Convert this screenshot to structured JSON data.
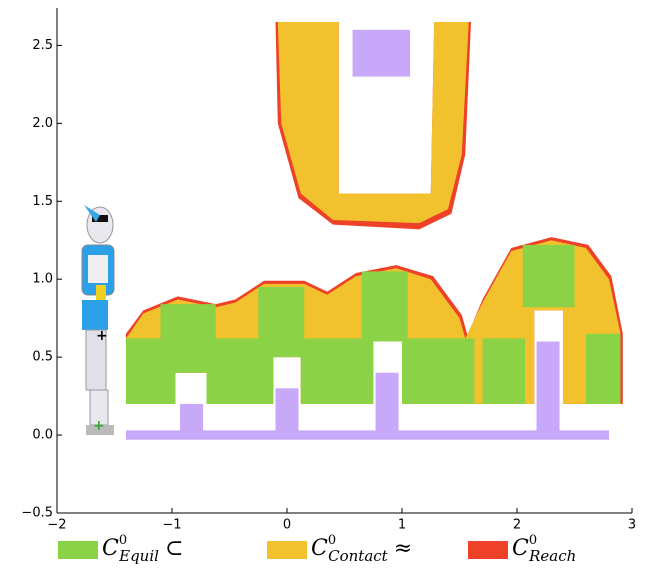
{
  "chart_data": {
    "type": "region",
    "xlim": [
      -2,
      3
    ],
    "ylim": [
      -0.5,
      2.74
    ],
    "xticks": [
      {
        "value": -2,
        "label": "−2"
      },
      {
        "value": -1,
        "label": "−1"
      },
      0,
      1,
      2,
      3
    ],
    "yticks": [
      {
        "value": -0.5,
        "label": "−0.5"
      },
      {
        "value": 0,
        "label": "0.0"
      },
      {
        "value": 0.5,
        "label": "0.5"
      },
      {
        "value": 1,
        "label": "1.0"
      },
      {
        "value": 1.5,
        "label": "1.5"
      },
      {
        "value": 2,
        "label": "2.0"
      },
      {
        "value": 2.5,
        "label": "2.5"
      }
    ],
    "series": [
      {
        "symbol": "C",
        "sup": "0",
        "sub": "Equil",
        "op": "⊂",
        "color": "#8cd246",
        "layer": 2,
        "polygons": [
          [
            [
              -1.4,
              0.2
            ],
            [
              -1.4,
              0.62
            ],
            [
              -1.1,
              0.62
            ],
            [
              -1.1,
              0.84
            ],
            [
              -0.62,
              0.84
            ],
            [
              -0.62,
              0.62
            ],
            [
              -0.25,
              0.62
            ],
            [
              -0.25,
              0.95
            ],
            [
              0.15,
              0.95
            ],
            [
              0.15,
              0.62
            ],
            [
              0.65,
              0.62
            ],
            [
              0.65,
              1.05
            ],
            [
              1.05,
              1.05
            ],
            [
              1.05,
              0.62
            ],
            [
              1.63,
              0.62
            ],
            [
              1.63,
              0.2
            ]
          ],
          [
            [
              -0.97,
              0.2
            ],
            [
              -0.97,
              0.4
            ],
            [
              -0.7,
              0.4
            ],
            [
              -0.7,
              0.2
            ]
          ],
          [
            [
              -0.12,
              0.2
            ],
            [
              -0.12,
              0.5
            ],
            [
              0.12,
              0.5
            ],
            [
              0.12,
              0.2
            ]
          ],
          [
            [
              0.75,
              0.2
            ],
            [
              0.75,
              0.6
            ],
            [
              1.0,
              0.6
            ],
            [
              1.0,
              0.2
            ]
          ],
          [
            [
              1.7,
              0.2
            ],
            [
              1.7,
              0.62
            ],
            [
              2.07,
              0.62
            ],
            [
              2.07,
              0.2
            ]
          ],
          [
            [
              2.05,
              0.82
            ],
            [
              2.05,
              1.22
            ],
            [
              2.5,
              1.22
            ],
            [
              2.5,
              0.82
            ]
          ],
          [
            [
              2.6,
              0.2
            ],
            [
              2.6,
              0.65
            ],
            [
              2.9,
              0.65
            ],
            [
              2.9,
              0.2
            ]
          ]
        ]
      },
      {
        "symbol": "C",
        "sup": "0",
        "sub": "Contact",
        "op": "≈",
        "color": "#f2c12e",
        "layer": 1,
        "polygons": [
          [
            [
              -0.08,
              2.65
            ],
            [
              0.45,
              2.65
            ],
            [
              0.45,
              1.55
            ],
            [
              1.25,
              1.55
            ],
            [
              1.28,
              2.65
            ],
            [
              1.58,
              2.65
            ],
            [
              1.52,
              1.8
            ],
            [
              1.4,
              1.45
            ],
            [
              1.15,
              1.36
            ],
            [
              0.4,
              1.38
            ],
            [
              0.12,
              1.55
            ],
            [
              -0.05,
              2.0
            ]
          ],
          [
            [
              -1.4,
              0.2
            ],
            [
              -1.4,
              0.62
            ],
            [
              -1.25,
              0.78
            ],
            [
              -0.95,
              0.87
            ],
            [
              -0.62,
              0.82
            ],
            [
              -0.45,
              0.85
            ],
            [
              -0.2,
              0.97
            ],
            [
              0.15,
              0.97
            ],
            [
              0.35,
              0.9
            ],
            [
              0.6,
              1.02
            ],
            [
              0.95,
              1.07
            ],
            [
              1.25,
              1.0
            ],
            [
              1.5,
              0.75
            ],
            [
              1.55,
              0.62
            ],
            [
              1.7,
              0.85
            ],
            [
              1.95,
              1.18
            ],
            [
              2.3,
              1.25
            ],
            [
              2.6,
              1.2
            ],
            [
              2.8,
              1.0
            ],
            [
              2.9,
              0.65
            ],
            [
              2.9,
              0.2
            ]
          ],
          [
            [
              -0.97,
              0.2
            ],
            [
              -0.97,
              0.4
            ],
            [
              -0.7,
              0.4
            ],
            [
              -0.7,
              0.2
            ]
          ],
          [
            [
              -0.12,
              0.2
            ],
            [
              -0.12,
              0.5
            ],
            [
              0.12,
              0.5
            ],
            [
              0.12,
              0.2
            ]
          ],
          [
            [
              0.75,
              0.2
            ],
            [
              0.75,
              0.6
            ],
            [
              1.0,
              0.6
            ],
            [
              1.0,
              0.2
            ]
          ],
          [
            [
              2.15,
              0.2
            ],
            [
              2.15,
              0.8
            ],
            [
              2.4,
              0.8
            ],
            [
              2.4,
              0.2
            ]
          ]
        ]
      },
      {
        "symbol": "C",
        "sup": "0",
        "sub": "Reach",
        "color": "#ee4128",
        "layer": 0,
        "polygons": [
          [
            [
              -0.1,
              2.65
            ],
            [
              0.45,
              2.65
            ],
            [
              0.45,
              1.55
            ],
            [
              1.25,
              1.55
            ],
            [
              1.28,
              2.65
            ],
            [
              1.6,
              2.65
            ],
            [
              1.55,
              1.8
            ],
            [
              1.43,
              1.42
            ],
            [
              1.15,
              1.32
            ],
            [
              0.4,
              1.35
            ],
            [
              0.1,
              1.52
            ],
            [
              -0.08,
              2.0
            ]
          ],
          [
            [
              -1.4,
              0.2
            ],
            [
              -1.4,
              0.65
            ],
            [
              -1.25,
              0.8
            ],
            [
              -0.95,
              0.89
            ],
            [
              -0.62,
              0.84
            ],
            [
              -0.45,
              0.87
            ],
            [
              -0.2,
              0.99
            ],
            [
              0.15,
              0.99
            ],
            [
              0.35,
              0.92
            ],
            [
              0.6,
              1.04
            ],
            [
              0.95,
              1.09
            ],
            [
              1.27,
              1.02
            ],
            [
              1.52,
              0.77
            ],
            [
              1.57,
              0.64
            ],
            [
              1.7,
              0.87
            ],
            [
              1.95,
              1.2
            ],
            [
              2.3,
              1.27
            ],
            [
              2.62,
              1.22
            ],
            [
              2.82,
              1.02
            ],
            [
              2.92,
              0.65
            ],
            [
              2.92,
              0.2
            ]
          ],
          [
            [
              -0.97,
              0.2
            ],
            [
              -0.97,
              0.4
            ],
            [
              -0.7,
              0.4
            ],
            [
              -0.7,
              0.2
            ]
          ],
          [
            [
              -0.12,
              0.2
            ],
            [
              -0.12,
              0.5
            ],
            [
              0.12,
              0.5
            ],
            [
              0.12,
              0.2
            ]
          ],
          [
            [
              0.75,
              0.2
            ],
            [
              0.75,
              0.6
            ],
            [
              1.0,
              0.6
            ],
            [
              1.0,
              0.2
            ]
          ],
          [
            [
              2.15,
              0.2
            ],
            [
              2.15,
              0.8
            ],
            [
              2.4,
              0.8
            ],
            [
              2.4,
              0.2
            ]
          ]
        ]
      }
    ],
    "obstacles": {
      "color": "#c8a8f8",
      "rects": [
        [
          -1.4,
          -0.03,
          2.8,
          0.03
        ],
        [
          -0.93,
          0,
          -0.73,
          0.2
        ],
        [
          -0.1,
          0,
          0.1,
          0.3
        ],
        [
          0.77,
          0,
          0.97,
          0.4
        ],
        [
          2.17,
          0,
          2.37,
          0.6
        ],
        [
          0.57,
          2.3,
          1.07,
          2.6
        ]
      ]
    }
  }
}
